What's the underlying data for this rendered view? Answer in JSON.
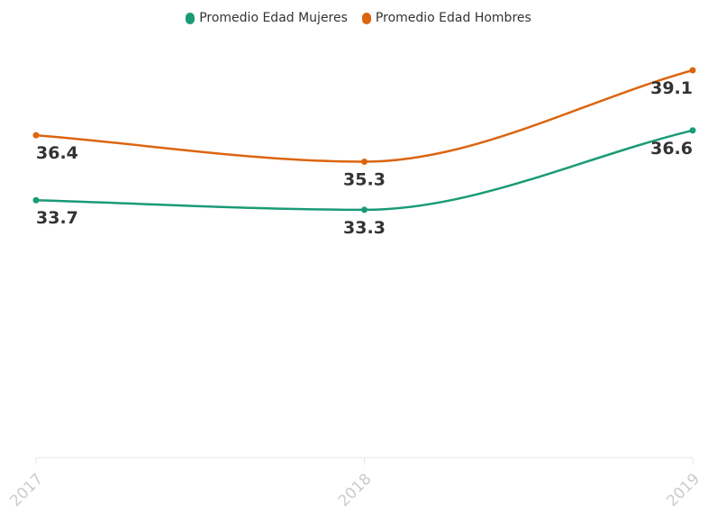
{
  "chart_data": {
    "type": "line",
    "x": [
      "2017",
      "2018",
      "2019"
    ],
    "series": [
      {
        "name": "Promedio Edad Mujeres",
        "values": [
          33.7,
          33.3,
          36.6
        ],
        "labels": [
          "33.7",
          "33.3",
          "36.6"
        ],
        "color": "#1a9b76"
      },
      {
        "name": "Promedio Edad Hombres",
        "values": [
          36.4,
          35.3,
          39.1
        ],
        "labels": [
          "36.4",
          "35.3",
          "39.1"
        ],
        "color": "#dc6510"
      }
    ],
    "ylim": [
      23,
      39.1
    ],
    "grid": false,
    "legend_position": "top-center"
  }
}
